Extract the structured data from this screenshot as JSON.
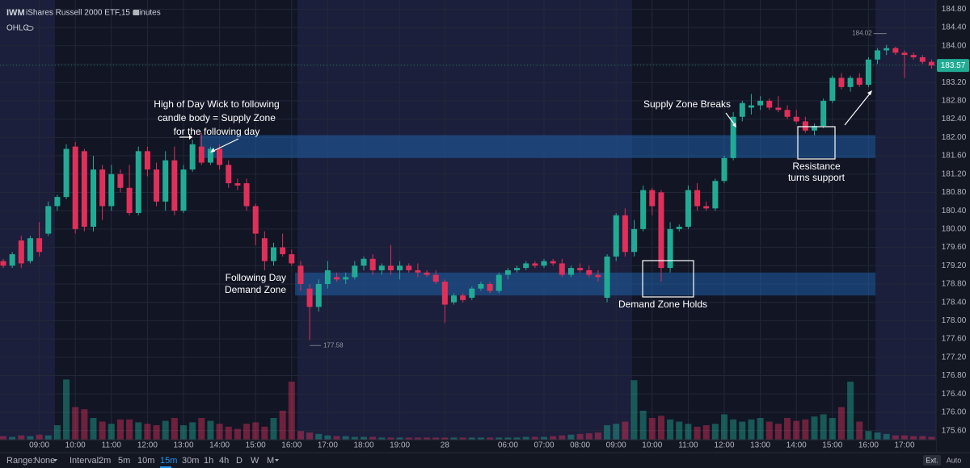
{
  "header": {
    "symbol": "IWM",
    "description": "iShares Russell 2000 ETF,15 minutes",
    "indicator": "OHLC"
  },
  "chart_data": {
    "type": "candlestick",
    "categories": [
      null,
      null,
      null,
      null,
      "09:00",
      null,
      null,
      null,
      "10:00",
      null,
      null,
      null,
      "11:00",
      null,
      null,
      null,
      "12:00",
      null,
      null,
      null,
      "13:00",
      null,
      null,
      null,
      "14:00",
      null,
      null,
      null,
      "15:00",
      null,
      null,
      null,
      "16:00",
      null,
      null,
      null,
      "17:00",
      null,
      null,
      null,
      "18:00",
      null,
      null,
      null,
      "19:00",
      null,
      null,
      null,
      null,
      "28",
      null,
      null,
      null,
      null,
      null,
      null,
      "06:00",
      null,
      null,
      null,
      "07:00",
      null,
      null,
      null,
      "08:00",
      null,
      null,
      null,
      "09:00",
      null,
      null,
      null,
      "10:00",
      null,
      null,
      null,
      "11:00",
      null,
      null,
      null,
      "12:00",
      null,
      null,
      null,
      "13:00",
      null,
      null,
      null,
      "14:00",
      null,
      null,
      null,
      "15:00",
      null,
      null,
      null,
      "16:00",
      null,
      null,
      null,
      "17:00",
      null,
      null,
      null
    ],
    "open": [
      179.3,
      179.2,
      179.75,
      179.3,
      179.8,
      179.9,
      180.5,
      180.7,
      181.8,
      181.7,
      180.05,
      181.3,
      180.5,
      181.2,
      180.9,
      180.35,
      181.7,
      181.3,
      180.6,
      181.5,
      180.4,
      181.3,
      181.8,
      181.45,
      181.75,
      181.4,
      181.0,
      181.0,
      180.5,
      179.8,
      179.3,
      179.6,
      179.45,
      179.2,
      178.7,
      178.3,
      178.8,
      178.95,
      178.9,
      178.95,
      179.2,
      179.35,
      179.1,
      179.2,
      179.1,
      179.2,
      179.1,
      179.05,
      179.0,
      178.85,
      178.4,
      178.55,
      178.5,
      178.7,
      178.8,
      178.65,
      179.0,
      179.1,
      179.15,
      179.25,
      179.2,
      179.3,
      179.25,
      179.0,
      179.15,
      179.1,
      179.0,
      178.5,
      179.4,
      180.3,
      179.5,
      180.0,
      180.85,
      180.8,
      179.15,
      180.0,
      180.05,
      180.85,
      180.5,
      180.45,
      181.05,
      181.55,
      182.45,
      182.65,
      182.7,
      182.8,
      182.65,
      182.6,
      182.45,
      182.35,
      182.15,
      182.25,
      182.8,
      183.3,
      183.1,
      183.3,
      183.15,
      183.7,
      183.9,
      183.95,
      183.85,
      183.8,
      183.75,
      183.65
    ],
    "high": [
      179.35,
      179.5,
      179.85,
      179.85,
      180.15,
      180.6,
      180.75,
      181.85,
      181.9,
      181.75,
      181.6,
      181.4,
      181.4,
      181.3,
      181.4,
      181.8,
      181.8,
      181.45,
      181.7,
      181.8,
      181.4,
      181.95,
      182.1,
      181.8,
      181.85,
      181.5,
      181.1,
      181.1,
      180.55,
      179.95,
      179.7,
      179.9,
      179.55,
      179.3,
      178.8,
      178.9,
      179.3,
      179.05,
      179.05,
      179.3,
      179.4,
      179.45,
      179.25,
      179.65,
      179.3,
      179.25,
      179.25,
      179.1,
      179.1,
      178.9,
      178.6,
      178.6,
      178.75,
      178.85,
      178.85,
      179.05,
      179.15,
      179.2,
      179.3,
      179.3,
      179.35,
      179.35,
      179.35,
      179.2,
      179.25,
      179.2,
      179.1,
      179.45,
      180.35,
      180.45,
      180.2,
      180.95,
      180.9,
      180.85,
      180.15,
      180.1,
      180.95,
      181.0,
      180.6,
      181.1,
      181.6,
      182.55,
      182.8,
      182.95,
      182.9,
      182.85,
      182.9,
      182.7,
      182.6,
      182.45,
      182.3,
      182.85,
      183.35,
      183.4,
      183.35,
      183.4,
      183.75,
      183.95,
      184.02,
      183.98,
      183.9,
      183.85,
      183.8,
      183.7
    ],
    "low": [
      179.15,
      179.15,
      179.15,
      179.25,
      179.4,
      179.85,
      180.4,
      180.65,
      179.9,
      179.95,
      179.95,
      180.2,
      180.4,
      180.8,
      180.3,
      180.3,
      181.15,
      180.5,
      180.4,
      180.3,
      180.35,
      181.25,
      181.4,
      181.4,
      181.3,
      180.9,
      180.85,
      180.4,
      179.65,
      179.1,
      179.2,
      179.4,
      179.2,
      178.65,
      177.58,
      178.2,
      178.7,
      178.85,
      178.8,
      178.9,
      179.1,
      179.0,
      179.0,
      179.0,
      178.9,
      179.05,
      178.95,
      178.95,
      178.8,
      177.95,
      178.35,
      178.4,
      178.45,
      178.65,
      178.6,
      178.6,
      178.9,
      179.05,
      179.1,
      179.15,
      179.15,
      179.2,
      178.95,
      178.95,
      179.05,
      178.95,
      178.85,
      178.4,
      179.3,
      179.4,
      179.4,
      179.95,
      180.3,
      178.85,
      179.05,
      179.95,
      180.0,
      180.4,
      180.4,
      180.4,
      181.0,
      181.5,
      182.35,
      182.5,
      182.6,
      182.6,
      182.55,
      182.4,
      182.3,
      182.1,
      182.05,
      182.2,
      182.75,
      183.05,
      183.0,
      183.1,
      183.1,
      183.6,
      183.8,
      183.8,
      183.3,
      183.7,
      183.6,
      183.5
    ],
    "close": [
      179.2,
      179.45,
      179.25,
      179.8,
      179.5,
      180.5,
      180.7,
      181.75,
      180.0,
      180.05,
      181.3,
      180.5,
      181.2,
      180.9,
      180.35,
      181.7,
      181.3,
      180.6,
      181.5,
      180.4,
      181.3,
      181.85,
      181.45,
      181.75,
      181.4,
      181.0,
      180.95,
      180.5,
      179.9,
      179.3,
      179.6,
      179.45,
      179.25,
      178.8,
      178.3,
      178.8,
      179.1,
      178.9,
      178.95,
      179.2,
      179.35,
      179.1,
      179.2,
      179.1,
      179.2,
      179.1,
      179.05,
      179.0,
      178.85,
      178.35,
      178.55,
      178.45,
      178.7,
      178.8,
      178.65,
      179.0,
      179.1,
      179.15,
      179.25,
      179.2,
      179.3,
      179.25,
      179.0,
      179.15,
      179.1,
      179.0,
      178.95,
      179.4,
      180.3,
      179.5,
      180.0,
      180.85,
      180.5,
      179.15,
      180.0,
      180.05,
      180.85,
      180.5,
      180.45,
      181.05,
      181.55,
      182.45,
      182.75,
      182.7,
      182.8,
      182.65,
      182.6,
      182.45,
      182.35,
      182.15,
      182.25,
      182.8,
      183.3,
      183.1,
      183.3,
      183.15,
      183.7,
      183.9,
      183.95,
      183.85,
      183.8,
      183.75,
      183.65,
      183.57
    ],
    "volume": [
      5,
      4,
      6,
      5,
      7,
      6,
      20,
      83,
      45,
      42,
      30,
      25,
      22,
      28,
      28,
      24,
      22,
      20,
      26,
      30,
      20,
      24,
      30,
      26,
      22,
      18,
      15,
      22,
      24,
      18,
      30,
      40,
      80,
      12,
      10,
      8,
      6,
      5,
      5,
      4,
      4,
      4,
      3,
      3,
      3,
      3,
      3,
      3,
      3,
      3,
      3,
      3,
      3,
      3,
      3,
      3,
      3,
      3,
      4,
      4,
      4,
      5,
      6,
      7,
      8,
      9,
      10,
      20,
      22,
      25,
      82,
      40,
      30,
      33,
      28,
      25,
      22,
      18,
      20,
      22,
      35,
      28,
      25,
      28,
      30,
      25,
      22,
      30,
      26,
      28,
      32,
      35,
      30,
      45,
      80,
      25,
      12,
      10,
      8,
      6,
      6,
      5,
      5,
      4
    ],
    "volume_ylim": [
      0,
      100
    ],
    "ylim": [
      175.4,
      185.0
    ],
    "yticks": [
      {
        "value": 175.6,
        "label": "175.60"
      },
      {
        "value": 176.0,
        "label": "176.00"
      },
      {
        "value": 176.4,
        "label": "176.40"
      },
      {
        "value": 176.8,
        "label": "176.80"
      },
      {
        "value": 177.2,
        "label": "177.20"
      },
      {
        "value": 177.6,
        "label": "177.60"
      },
      {
        "value": 178.0,
        "label": "178.00"
      },
      {
        "value": 178.4,
        "label": "178.40"
      },
      {
        "value": 178.8,
        "label": "178.80"
      },
      {
        "value": 179.2,
        "label": "179.20"
      },
      {
        "value": 179.6,
        "label": "179.60"
      },
      {
        "value": 180.0,
        "label": "180.00"
      },
      {
        "value": 180.4,
        "label": "180.40"
      },
      {
        "value": 180.8,
        "label": "180.80"
      },
      {
        "value": 181.2,
        "label": "181.20"
      },
      {
        "value": 181.6,
        "label": "181.60"
      },
      {
        "value": 182.0,
        "label": "182.00"
      },
      {
        "value": 182.4,
        "label": "182.40"
      },
      {
        "value": 182.8,
        "label": "182.80"
      },
      {
        "value": 183.2,
        "label": "183.20"
      },
      {
        "value": 183.6,
        "label": "183.60"
      },
      {
        "value": 184.0,
        "label": "184.00"
      },
      {
        "value": 184.4,
        "label": "184.40"
      },
      {
        "value": 184.8,
        "label": "184.80"
      }
    ],
    "grid": true,
    "up_color": "#22ab94",
    "down_color": "#e0305a",
    "last_price": 183.57,
    "low_marker": 177.58,
    "high_marker": 184.02,
    "zones": [
      {
        "low": 181.55,
        "high": 182.05
      },
      {
        "low": 178.55,
        "high": 179.05
      }
    ],
    "zone_color": "#1f5fa8",
    "annotations": [
      "High of Day Wick to following",
      "candle body = Supply Zone",
      "for the following day",
      "Following Day",
      "Demand Zone",
      "Demand Zone Holds",
      "Supply Zone Breaks",
      "Resistance",
      "turns support"
    ]
  },
  "toolbar": {
    "range_label": "Range:",
    "range": "None",
    "interval_label": "Interval:",
    "intervals": [
      "2m",
      "5m",
      "10m",
      "15m",
      "30m",
      "1h",
      "4h",
      "D",
      "W",
      "M"
    ],
    "ext": "Ext.",
    "auto": "Auto"
  }
}
